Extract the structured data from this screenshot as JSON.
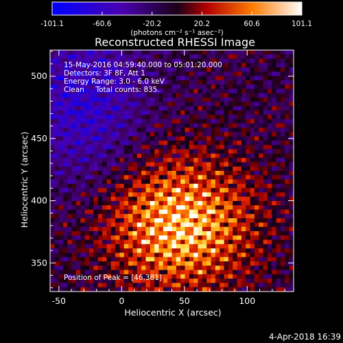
{
  "colorbar": {
    "tick_labels": [
      "-101.1",
      "-60.6",
      "-20.2",
      "20.2",
      "60.6",
      "101.1"
    ],
    "tick_values": [
      -101.1,
      -60.6,
      -20.2,
      20.2,
      60.6,
      101.1
    ],
    "range": [
      -101.1,
      101.1
    ],
    "unit_label": "(photons cm⁻² s⁻¹ asec⁻²)"
  },
  "chart_data": {
    "type": "heatmap",
    "title": "Reconstructed RHESSI Image",
    "xlabel": "Heliocentric X (arcsec)",
    "ylabel": "Heliocentric Y (arcsec)",
    "xlim": [
      -57,
      137
    ],
    "ylim": [
      327,
      521
    ],
    "x_ticks": [
      -50,
      0,
      50,
      100
    ],
    "y_ticks": [
      350,
      400,
      450,
      500
    ],
    "x_tick_labels": [
      "-50",
      "0",
      "50",
      "100"
    ],
    "y_tick_labels": [
      "350",
      "400",
      "450",
      "500"
    ],
    "annotations": [
      "15-May-2016 04:59:40.000 to 05:01:20.000",
      "Detectors: 3F 8F, Att 1",
      "Energy Range: 3.0 - 6.0 keV",
      "Clean     Total counts: 835."
    ],
    "peak_label": "Position of Peak = [46,381]",
    "peak_position": [
      46,
      381
    ],
    "colormap": "blue-purple-black-red-yellow-white"
  },
  "footer": {
    "timestamp": "4-Apr-2018 16:39"
  },
  "colors": {
    "background": "#000000",
    "text": "#ffffff"
  }
}
